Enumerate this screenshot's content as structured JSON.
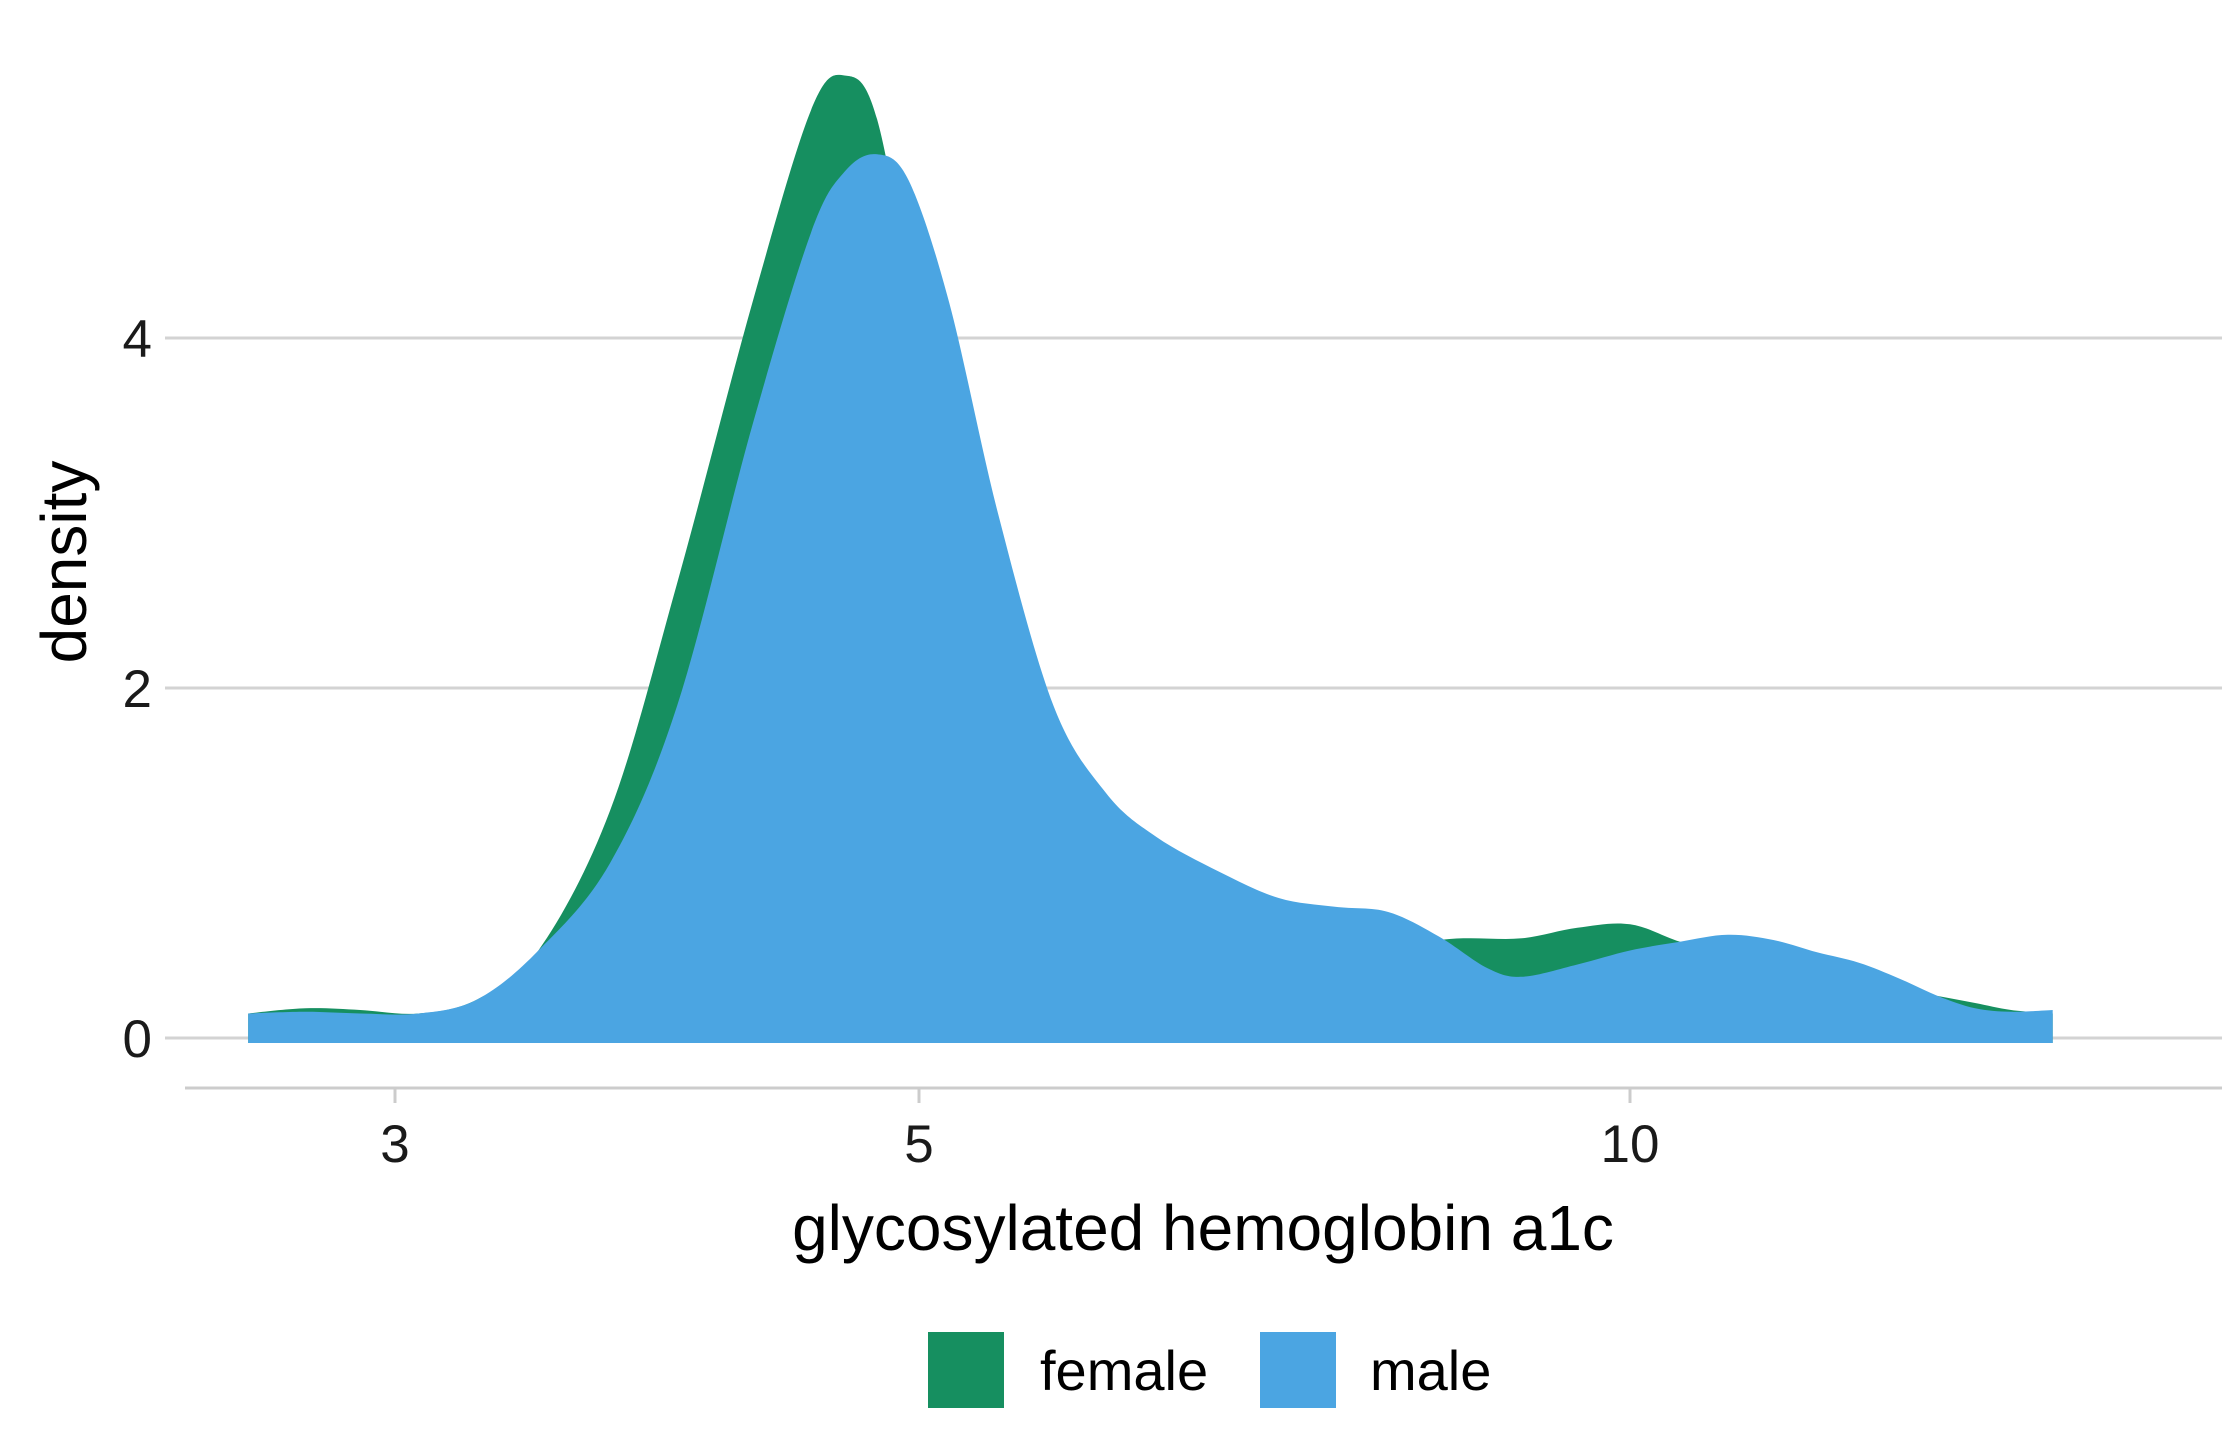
{
  "chart_data": {
    "type": "area",
    "xlabel": "glycosylated hemoglobin a1c",
    "ylabel": "density",
    "x_scale": "log",
    "xlim": [
      2.55,
      15.5
    ],
    "ylim": [
      -0.25,
      5.6
    ],
    "x_ticks": [
      3,
      5,
      10
    ],
    "x_tick_labels": [
      "3",
      "5",
      "10"
    ],
    "y_ticks": [
      0,
      2,
      4
    ],
    "y_tick_labels": [
      "0",
      "2",
      "4"
    ],
    "grid": "horizontal",
    "legend_position": "bottom",
    "series": [
      {
        "name": "female",
        "color": "#168F60",
        "x": [
          2.6,
          2.75,
          2.9,
          3.07,
          3.25,
          3.45,
          3.7,
          3.95,
          4.25,
          4.5,
          4.65,
          4.8,
          5.0,
          5.25,
          5.5,
          5.8,
          6.15,
          6.5,
          7.0,
          7.5,
          8.0,
          8.5,
          9.0,
          9.5,
          10.0,
          10.5,
          11.0,
          11.5,
          12.0,
          12.5,
          13.0,
          13.5,
          14.0,
          14.5,
          15.1
        ],
        "values": [
          0.14,
          0.17,
          0.16,
          0.14,
          0.22,
          0.5,
          1.3,
          2.6,
          4.2,
          5.3,
          5.5,
          5.25,
          4.0,
          2.6,
          1.8,
          1.25,
          1.0,
          0.82,
          0.72,
          0.6,
          0.55,
          0.57,
          0.57,
          0.63,
          0.65,
          0.55,
          0.48,
          0.42,
          0.36,
          0.3,
          0.28,
          0.24,
          0.2,
          0.16,
          0.14
        ]
      },
      {
        "name": "male",
        "color": "#4BA5E2",
        "x": [
          2.6,
          2.75,
          2.9,
          3.07,
          3.25,
          3.45,
          3.7,
          3.95,
          4.25,
          4.5,
          4.65,
          4.8,
          4.95,
          5.15,
          5.4,
          5.7,
          6.0,
          6.3,
          6.7,
          7.1,
          7.5,
          7.9,
          8.3,
          8.7,
          9.0,
          9.5,
          10.0,
          10.5,
          11.0,
          11.5,
          12.0,
          12.5,
          13.0,
          13.5,
          14.0,
          14.5,
          15.1
        ],
        "values": [
          0.14,
          0.15,
          0.14,
          0.14,
          0.22,
          0.5,
          1.0,
          1.9,
          3.5,
          4.6,
          4.95,
          5.05,
          4.9,
          4.2,
          3.0,
          1.9,
          1.4,
          1.15,
          0.95,
          0.8,
          0.75,
          0.72,
          0.58,
          0.4,
          0.35,
          0.42,
          0.5,
          0.55,
          0.59,
          0.56,
          0.49,
          0.43,
          0.34,
          0.24,
          0.17,
          0.15,
          0.16
        ]
      }
    ]
  }
}
